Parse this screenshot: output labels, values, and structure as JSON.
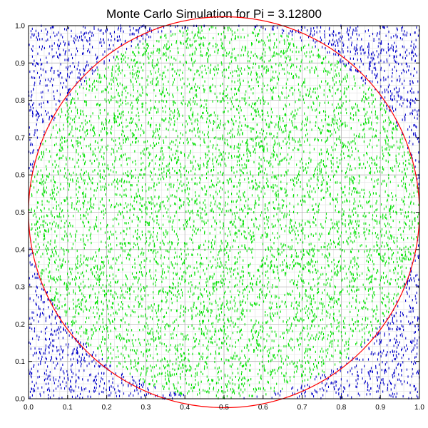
{
  "chart_data": {
    "type": "scatter",
    "title": "Monte Carlo Simulation for Pi = 3.12800",
    "xlabel": "",
    "ylabel": "",
    "xlim": [
      0,
      1
    ],
    "ylim": [
      0,
      1
    ],
    "x_ticks": [
      "0.0",
      "0.1",
      "0.2",
      "0.3",
      "0.4",
      "0.5",
      "0.6",
      "0.7",
      "0.8",
      "0.9",
      "1.0"
    ],
    "y_ticks": [
      "0.0",
      "0.1",
      "0.2",
      "0.3",
      "0.4",
      "0.5",
      "0.6",
      "0.7",
      "0.8",
      "0.9",
      "1.0"
    ],
    "grid": true,
    "minor_grid": true,
    "circle": {
      "center": [
        0.5,
        0.5
      ],
      "radius": 0.5,
      "color": "#ff0000"
    },
    "pi_estimate": 3.128,
    "series": [
      {
        "inside_circle": true,
        "color": "#00e000",
        "marker": "short vertical dash",
        "fraction_of_points": 0.782
      },
      {
        "inside_circle": false,
        "color": "#0000c8",
        "marker": "short vertical dash",
        "fraction_of_points": 0.218
      }
    ]
  }
}
